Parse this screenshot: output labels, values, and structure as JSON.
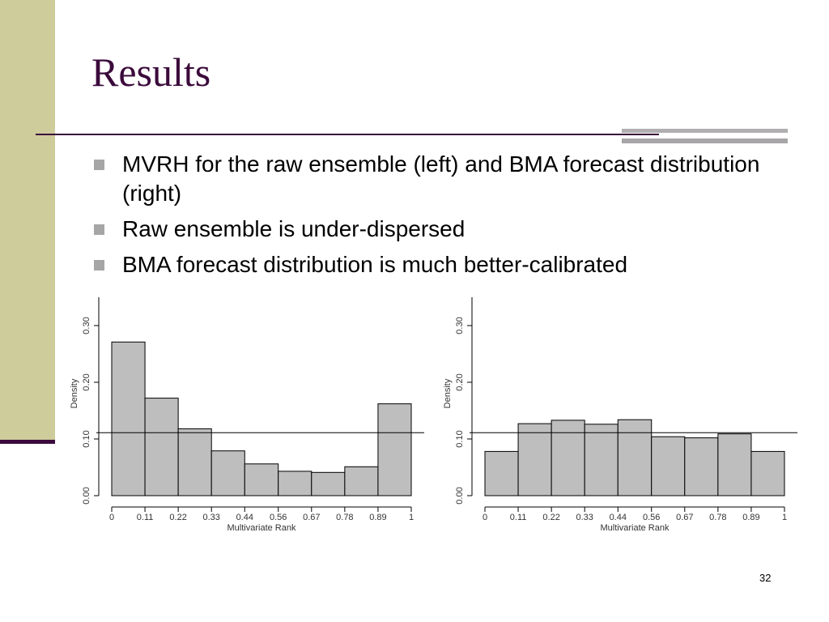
{
  "slide": {
    "title": "Results",
    "bullets": [
      "MVRH for the raw ensemble (left) and BMA forecast distribution (right)",
      "Raw ensemble is under-dispersed",
      "BMA forecast distribution is much better-calibrated"
    ],
    "page_number": "32",
    "colors": {
      "title": "#3b0a3b",
      "left_band": "#cfcc9c",
      "bar_fill": "#bebebe"
    }
  },
  "chart_data": [
    {
      "type": "bar",
      "xlabel": "Multivariate Rank",
      "ylabel": "Density",
      "x_tick_labels": [
        "0",
        "0.11",
        "0.22",
        "0.33",
        "0.44",
        "0.56",
        "0.67",
        "0.78",
        "0.89",
        "1"
      ],
      "y_tick_labels": [
        "0.00",
        "0.10",
        "0.20",
        "0.30"
      ],
      "y_ticks": [
        0.0,
        0.1,
        0.2,
        0.3
      ],
      "ylim": [
        0,
        0.35
      ],
      "bin_edges": [
        0,
        0.111,
        0.222,
        0.333,
        0.444,
        0.556,
        0.667,
        0.778,
        0.889,
        1
      ],
      "values": [
        0.271,
        0.172,
        0.118,
        0.079,
        0.056,
        0.043,
        0.041,
        0.051,
        0.162
      ],
      "reference_line": 0.111
    },
    {
      "type": "bar",
      "xlabel": "Multivariate Rank",
      "ylabel": "Density",
      "x_tick_labels": [
        "0",
        "0.11",
        "0.22",
        "0.33",
        "0.44",
        "0.56",
        "0.67",
        "0.78",
        "0.89",
        "1"
      ],
      "y_tick_labels": [
        "0.00",
        "0.10",
        "0.20",
        "0.30"
      ],
      "y_ticks": [
        0.0,
        0.1,
        0.2,
        0.3
      ],
      "ylim": [
        0,
        0.35
      ],
      "bin_edges": [
        0,
        0.111,
        0.222,
        0.333,
        0.444,
        0.556,
        0.667,
        0.778,
        0.889,
        1
      ],
      "values": [
        0.078,
        0.127,
        0.133,
        0.126,
        0.134,
        0.104,
        0.102,
        0.109,
        0.078
      ],
      "reference_line": 0.111
    }
  ]
}
